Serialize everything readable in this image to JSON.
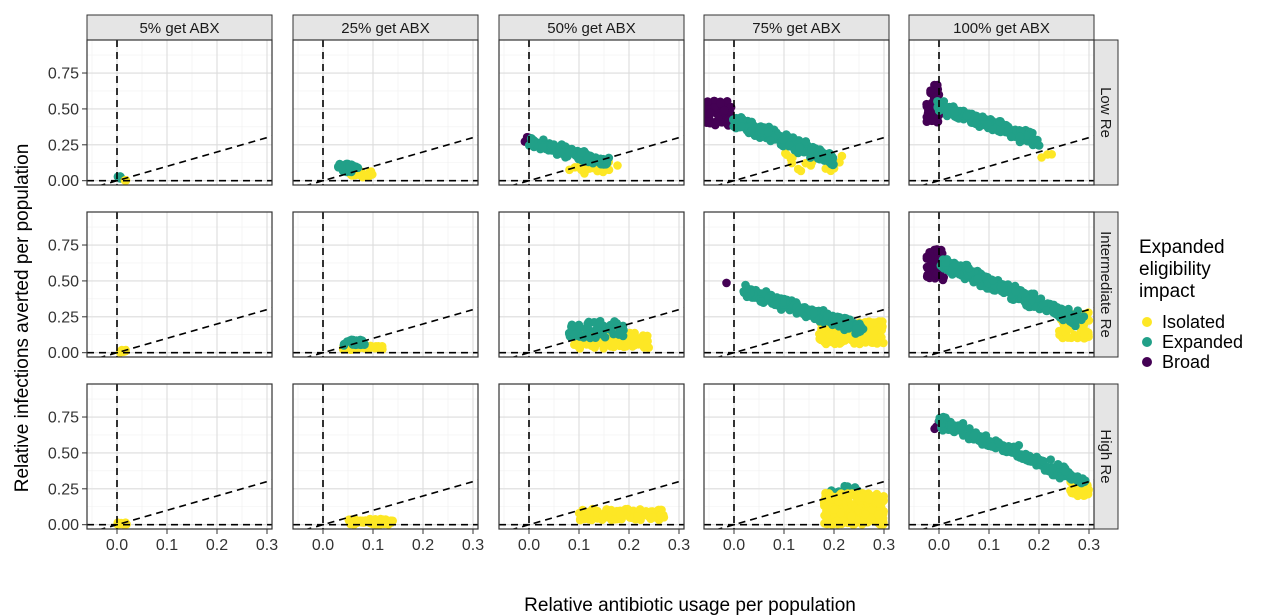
{
  "chart_data": {
    "type": "scatter",
    "facet_columns": [
      "5% get ABX",
      "25% get ABX",
      "50% get ABX",
      "75% get ABX",
      "100% get ABX"
    ],
    "facet_rows": [
      "Low Re",
      "Intermediate Re",
      "High Re"
    ],
    "xlabel": "Relative antibiotic usage per population",
    "ylabel": "Relative infections averted per population",
    "xlim": [
      -0.06,
      0.31
    ],
    "ylim": [
      -0.03,
      0.98
    ],
    "x_ticks": [
      "0.0",
      "0.1",
      "0.2",
      "0.3"
    ],
    "x_tick_values": [
      0.0,
      0.1,
      0.2,
      0.3
    ],
    "y_ticks": [
      "0.00",
      "0.25",
      "0.50",
      "0.75"
    ],
    "y_tick_values": [
      0.0,
      0.25,
      0.5,
      0.75
    ],
    "grid": true,
    "reference_lines": {
      "vertical_x": 0,
      "horizontal_y": 0,
      "diagonal_slope": 1
    },
    "legend": {
      "title_lines": [
        "Expanded",
        "eligibility",
        "impact"
      ],
      "position": "right",
      "entries": [
        {
          "label": "Isolated",
          "color": "#FDE725"
        },
        {
          "label": "Expanded",
          "color": "#21A088"
        },
        {
          "label": "Broad",
          "color": "#440154"
        }
      ]
    },
    "clusters": [
      {
        "row": 0,
        "col": 0,
        "group": "Expanded",
        "x": [
          0.0,
          0.01
        ],
        "y": [
          0.01,
          0.03
        ],
        "n": 5
      },
      {
        "row": 0,
        "col": 0,
        "group": "Isolated",
        "x": [
          0.01,
          0.02
        ],
        "y": [
          0.0,
          0.01
        ],
        "n": 3
      },
      {
        "row": 0,
        "col": 1,
        "group": "Isolated",
        "x": [
          0.05,
          0.1
        ],
        "y": [
          0.02,
          0.07
        ],
        "n": 18
      },
      {
        "row": 0,
        "col": 1,
        "group": "Expanded",
        "x": [
          0.03,
          0.07
        ],
        "y": [
          0.06,
          0.12
        ],
        "n": 26
      },
      {
        "row": 0,
        "col": 2,
        "group": "Broad",
        "x": [
          -0.01,
          0.01
        ],
        "y": [
          0.26,
          0.31
        ],
        "n": 3
      },
      {
        "row": 0,
        "col": 2,
        "group": "Isolated",
        "x": [
          0.08,
          0.18
        ],
        "y": [
          0.05,
          0.13
        ],
        "n": 22
      },
      {
        "row": 0,
        "col": 2,
        "group": "Expanded",
        "x": [
          0.0,
          0.16
        ],
        "y": [
          0.1,
          0.34
        ],
        "line": [
          [
            0.0,
            0.27
          ],
          [
            0.16,
            0.12
          ]
        ],
        "spread": 0.045,
        "n": 200
      },
      {
        "row": 0,
        "col": 3,
        "group": "Isolated",
        "x": [
          0.1,
          0.22
        ],
        "y": [
          0.06,
          0.2
        ],
        "n": 18
      },
      {
        "row": 0,
        "col": 3,
        "group": "Broad",
        "x": [
          -0.055,
          -0.005
        ],
        "y": [
          0.38,
          0.56
        ],
        "n": 55
      },
      {
        "row": 0,
        "col": 3,
        "group": "Expanded",
        "x": [
          -0.01,
          0.2
        ],
        "y": [
          0.1,
          0.52
        ],
        "line": [
          [
            0.0,
            0.42
          ],
          [
            0.2,
            0.14
          ]
        ],
        "spread": 0.06,
        "n": 300
      },
      {
        "row": 0,
        "col": 4,
        "group": "Broad",
        "x": [
          -0.025,
          0.0
        ],
        "y": [
          0.4,
          0.68
        ],
        "n": 40
      },
      {
        "row": 0,
        "col": 4,
        "group": "Isolated",
        "x": [
          0.2,
          0.25
        ],
        "y": [
          0.15,
          0.2
        ],
        "n": 3
      },
      {
        "row": 0,
        "col": 4,
        "group": "Expanded",
        "x": [
          -0.005,
          0.22
        ],
        "y": [
          0.2,
          0.6
        ],
        "line": [
          [
            0.0,
            0.52
          ],
          [
            0.2,
            0.27
          ]
        ],
        "spread": 0.06,
        "n": 180
      },
      {
        "row": 1,
        "col": 0,
        "group": "Isolated",
        "x": [
          0.0,
          0.02
        ],
        "y": [
          0.0,
          0.02
        ],
        "n": 8
      },
      {
        "row": 1,
        "col": 1,
        "group": "Isolated",
        "x": [
          0.04,
          0.12
        ],
        "y": [
          0.02,
          0.05
        ],
        "n": 30
      },
      {
        "row": 1,
        "col": 1,
        "group": "Expanded",
        "x": [
          0.04,
          0.09
        ],
        "y": [
          0.05,
          0.09
        ],
        "n": 20
      },
      {
        "row": 1,
        "col": 2,
        "group": "Isolated",
        "x": [
          0.09,
          0.24
        ],
        "y": [
          0.03,
          0.14
        ],
        "n": 90
      },
      {
        "row": 1,
        "col": 2,
        "group": "Expanded",
        "x": [
          0.08,
          0.19
        ],
        "y": [
          0.1,
          0.22
        ],
        "n": 60
      },
      {
        "row": 1,
        "col": 3,
        "group": "Broad",
        "x": [
          -0.015,
          -0.01
        ],
        "y": [
          0.48,
          0.5
        ],
        "n": 1
      },
      {
        "row": 1,
        "col": 3,
        "group": "Isolated",
        "x": [
          0.17,
          0.3
        ],
        "y": [
          0.06,
          0.22
        ],
        "n": 170
      },
      {
        "row": 1,
        "col": 3,
        "group": "Expanded",
        "x": [
          0.0,
          0.26
        ],
        "y": [
          0.12,
          0.5
        ],
        "line": [
          [
            0.02,
            0.43
          ],
          [
            0.25,
            0.17
          ]
        ],
        "spread": 0.055,
        "n": 300
      },
      {
        "row": 1,
        "col": 4,
        "group": "Broad",
        "x": [
          -0.025,
          0.01
        ],
        "y": [
          0.5,
          0.72
        ],
        "n": 55
      },
      {
        "row": 1,
        "col": 4,
        "group": "Isolated",
        "x": [
          0.24,
          0.3
        ],
        "y": [
          0.1,
          0.28
        ],
        "n": 55
      },
      {
        "row": 1,
        "col": 4,
        "group": "Expanded",
        "x": [
          0.0,
          0.3
        ],
        "y": [
          0.15,
          0.68
        ],
        "line": [
          [
            0.01,
            0.62
          ],
          [
            0.28,
            0.23
          ]
        ],
        "spread": 0.06,
        "n": 450
      },
      {
        "row": 2,
        "col": 0,
        "group": "Isolated",
        "x": [
          0.0,
          0.02
        ],
        "y": [
          0.0,
          0.02
        ],
        "n": 8
      },
      {
        "row": 2,
        "col": 1,
        "group": "Isolated",
        "x": [
          0.05,
          0.14
        ],
        "y": [
          0.0,
          0.04
        ],
        "n": 60
      },
      {
        "row": 2,
        "col": 2,
        "group": "Isolated",
        "x": [
          0.1,
          0.27
        ],
        "y": [
          0.03,
          0.11
        ],
        "n": 140
      },
      {
        "row": 2,
        "col": 3,
        "group": "Expanded",
        "x": [
          0.19,
          0.27
        ],
        "y": [
          0.19,
          0.27
        ],
        "n": 20
      },
      {
        "row": 2,
        "col": 3,
        "group": "Isolated",
        "x": [
          0.18,
          0.3
        ],
        "y": [
          0.0,
          0.22
        ],
        "n": 260
      },
      {
        "row": 2,
        "col": 4,
        "group": "Broad",
        "x": [
          -0.012,
          0.0
        ],
        "y": [
          0.63,
          0.76
        ],
        "n": 3
      },
      {
        "row": 2,
        "col": 4,
        "group": "Isolated",
        "x": [
          0.26,
          0.3
        ],
        "y": [
          0.2,
          0.3
        ],
        "n": 40
      },
      {
        "row": 2,
        "col": 4,
        "group": "Expanded",
        "x": [
          0.0,
          0.3
        ],
        "y": [
          0.26,
          0.75
        ],
        "line": [
          [
            0.0,
            0.72
          ],
          [
            0.29,
            0.3
          ]
        ],
        "spread": 0.055,
        "n": 200
      }
    ]
  }
}
